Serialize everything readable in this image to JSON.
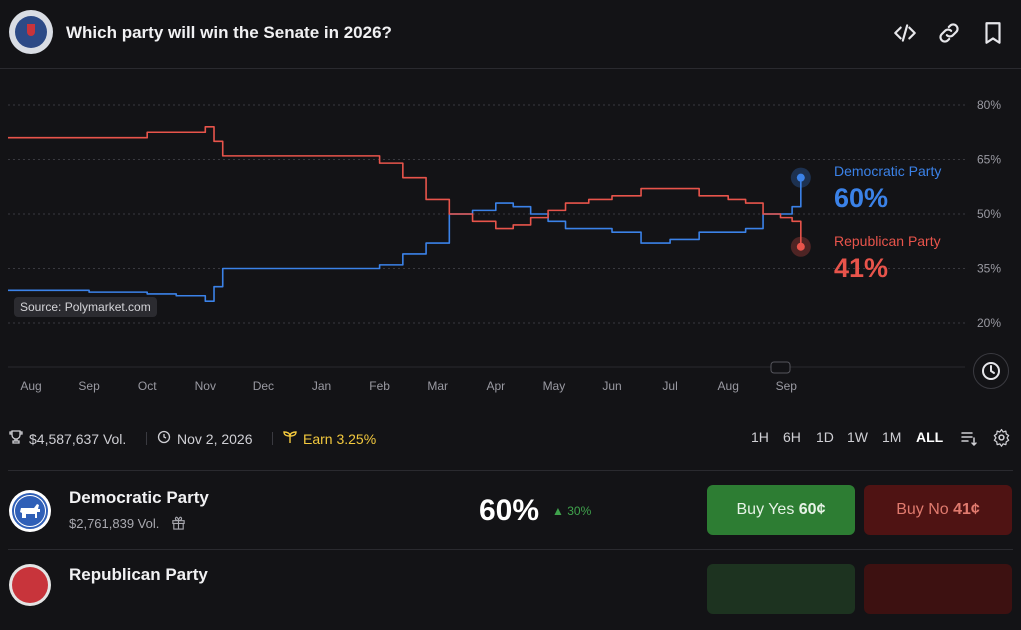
{
  "header": {
    "title": "Which party will win the Senate in 2026?",
    "icons": [
      "embed-icon",
      "link-icon",
      "bookmark-icon"
    ]
  },
  "chart_data": {
    "type": "line",
    "x_labels": [
      "Aug",
      "Sep",
      "Oct",
      "Nov",
      "Dec",
      "Jan",
      "Feb",
      "Mar",
      "Apr",
      "May",
      "Jun",
      "Jul",
      "Aug",
      "Sep"
    ],
    "y_ticks": [
      "80%",
      "65%",
      "50%",
      "35%",
      "20%"
    ],
    "ylim": [
      20,
      80
    ],
    "grid": true,
    "series": [
      {
        "name": "Democratic Party",
        "color": "#3b82e8",
        "x": [
          0,
          1,
          2,
          2.5,
          3.0,
          3.15,
          3.3,
          3.9,
          4.5,
          5.5,
          6.0,
          6.4,
          6.8,
          7.2,
          7.6,
          8.0,
          8.3,
          8.6,
          8.9,
          9.2,
          9.6,
          10.0,
          10.5,
          11.0,
          11.5,
          12.0,
          12.3,
          12.6,
          12.9,
          13.1,
          13.25
        ],
        "values": [
          29,
          28.5,
          28,
          27.5,
          26,
          30,
          35,
          35,
          35,
          35,
          36,
          39,
          42,
          50,
          51,
          53,
          52,
          50,
          48,
          46,
          46,
          45,
          42,
          43,
          45,
          45,
          46,
          50,
          50,
          52,
          60
        ]
      },
      {
        "name": "Republican Party",
        "color": "#e8544b",
        "x": [
          0,
          1,
          2,
          2.5,
          3.0,
          3.15,
          3.3,
          3.9,
          4.5,
          5.5,
          6.0,
          6.4,
          6.8,
          7.2,
          7.6,
          8.0,
          8.3,
          8.6,
          8.9,
          9.2,
          9.6,
          10.0,
          10.5,
          11.0,
          11.5,
          12.0,
          12.3,
          12.6,
          12.9,
          13.1,
          13.25
        ],
        "values": [
          71,
          71,
          72.5,
          72.5,
          74,
          70,
          66,
          66,
          66,
          66,
          64,
          60,
          54,
          50,
          48,
          46,
          47,
          49,
          51,
          53,
          54,
          55,
          57,
          57,
          55,
          54,
          53,
          50,
          49,
          48,
          41
        ]
      }
    ],
    "end_labels": [
      {
        "name": "Democratic Party",
        "value": "60%"
      },
      {
        "name": "Republican Party",
        "value": "41%"
      }
    ],
    "source": "Source: Polymarket.com"
  },
  "stats": {
    "volume": "$4,587,637 Vol.",
    "date": "Nov 2, 2026",
    "earn": "Earn 3.25%"
  },
  "ranges": [
    "1H",
    "6H",
    "1D",
    "1W",
    "1M",
    "ALL"
  ],
  "active_range": "ALL",
  "outcomes": [
    {
      "name": "Democratic Party",
      "volume": "$2,761,839 Vol.",
      "pct": "60%",
      "change": "30%",
      "buy_yes_label": "Buy Yes",
      "buy_yes_price": "60¢",
      "buy_no_label": "Buy No",
      "buy_no_price": "41¢"
    },
    {
      "name": "Republican Party"
    }
  ]
}
